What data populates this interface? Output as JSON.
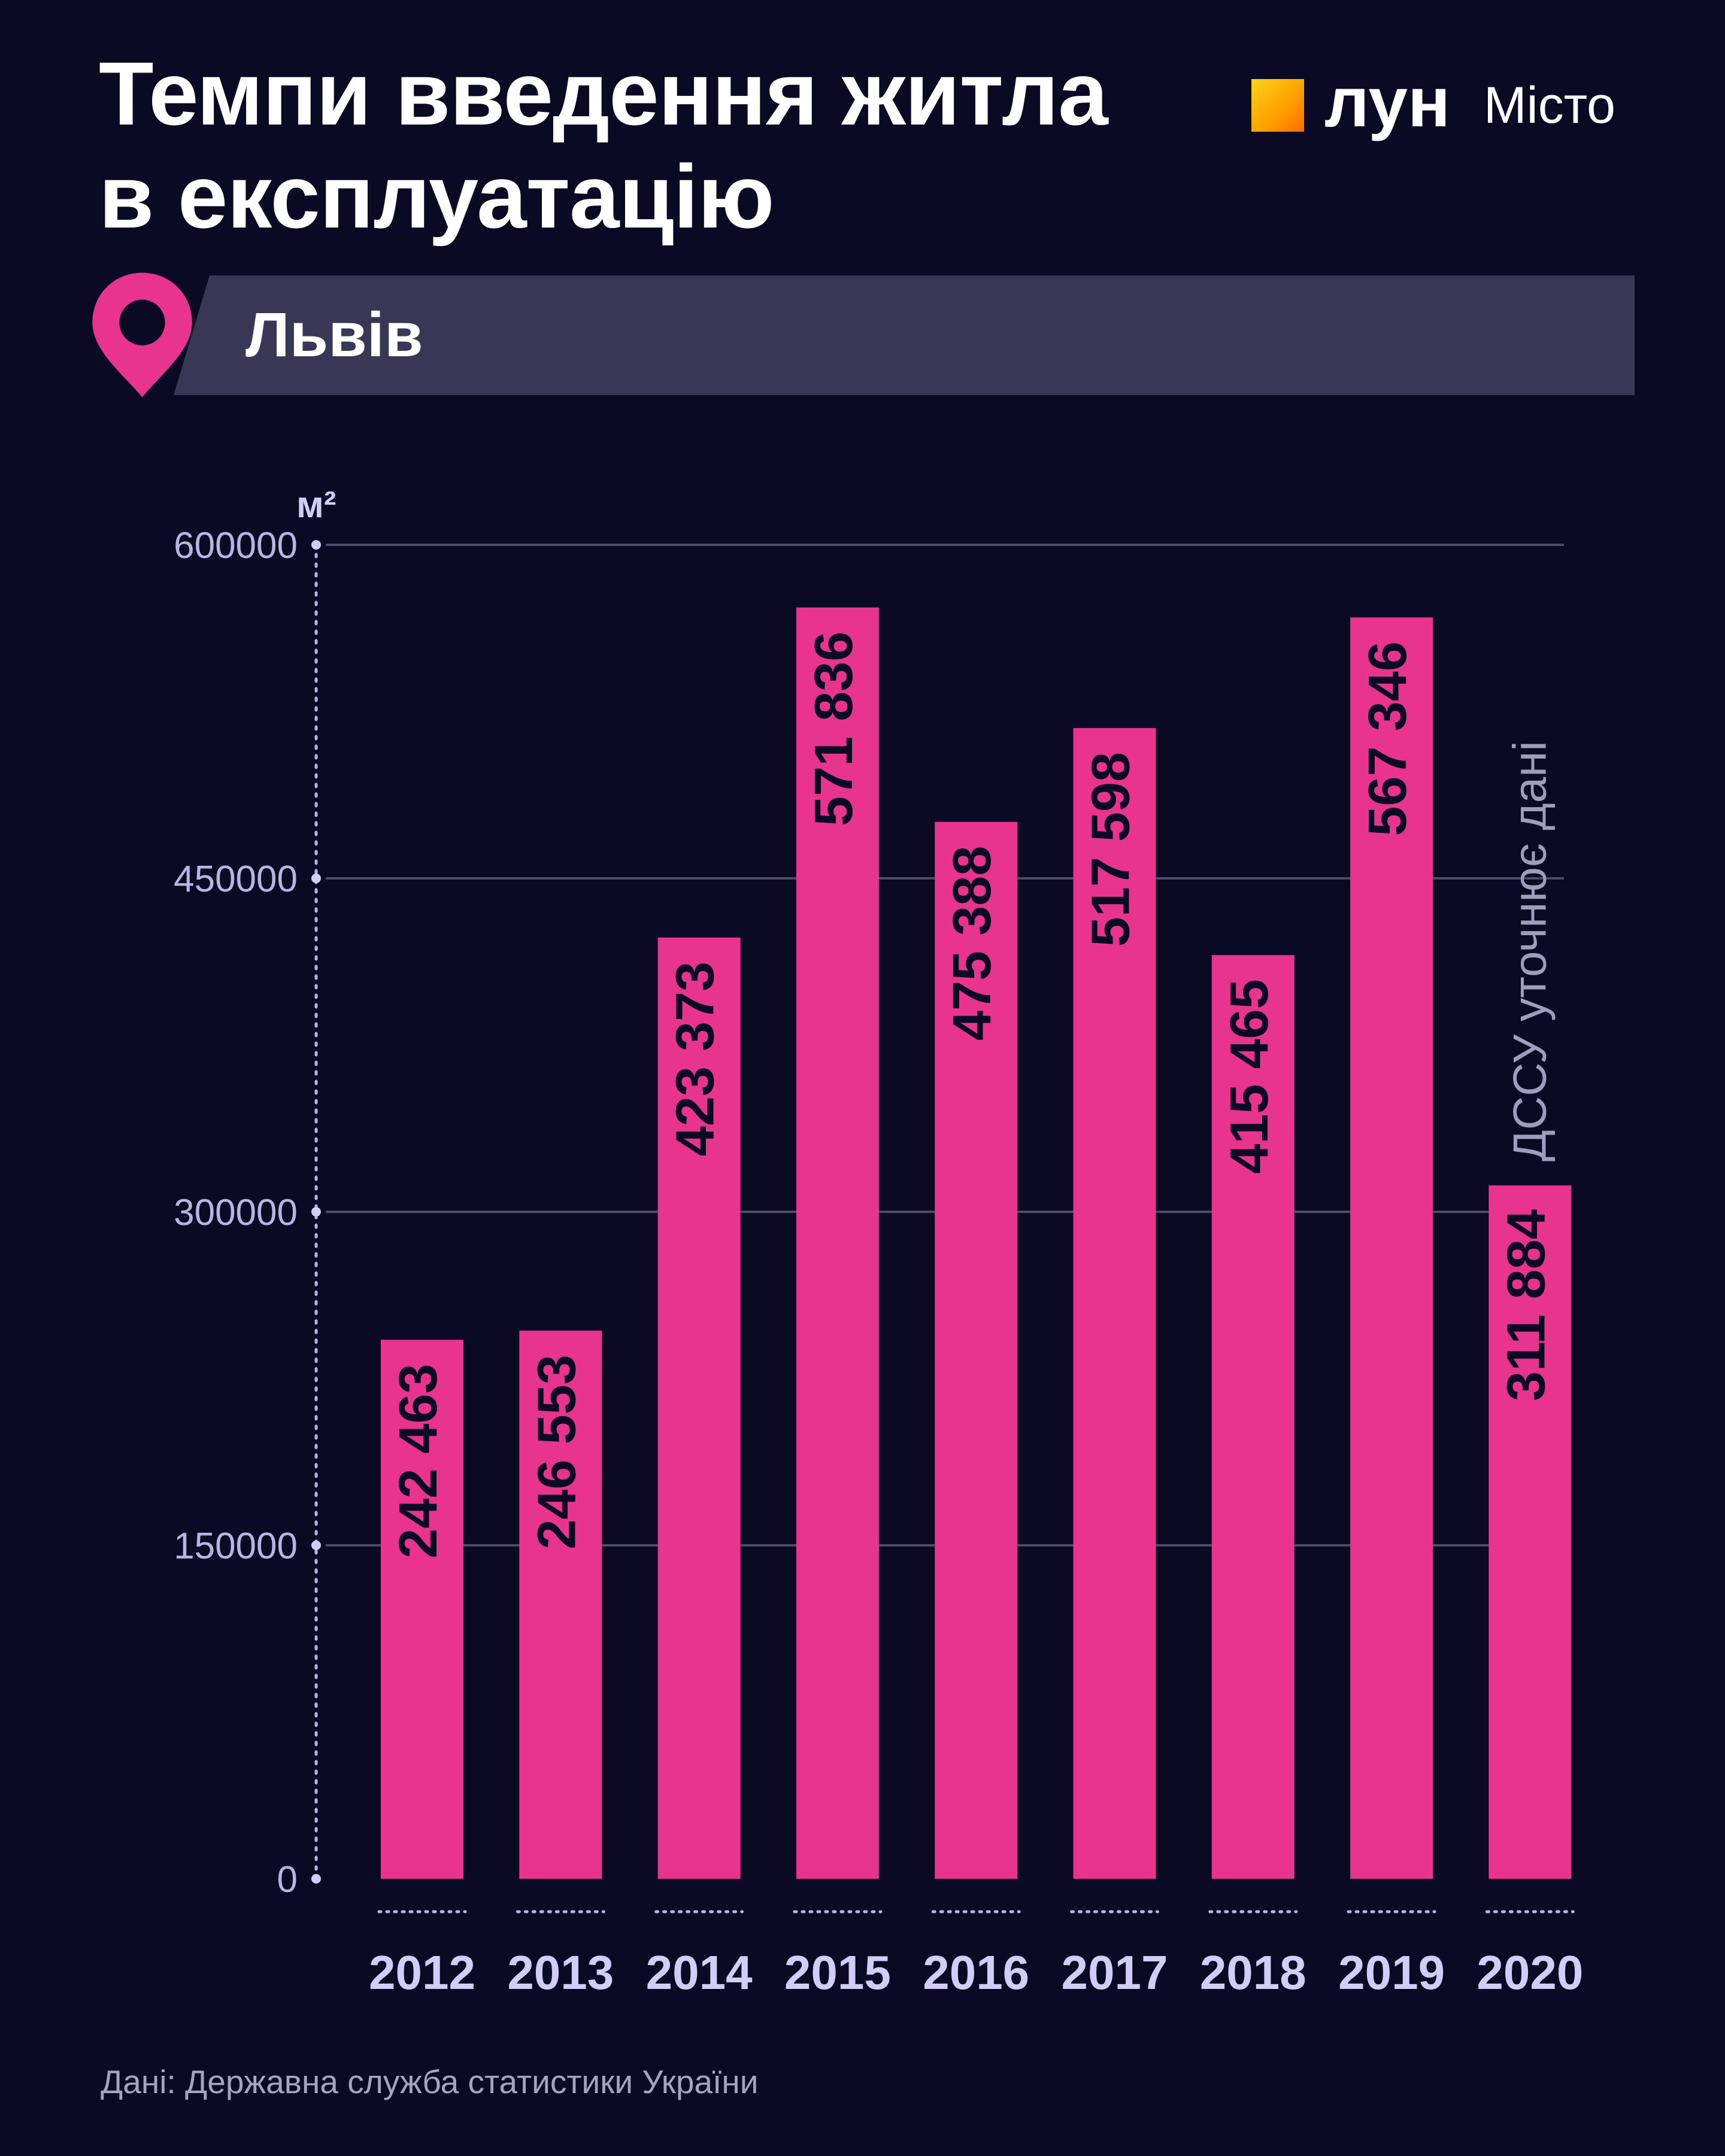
{
  "title_lines": [
    "Темпи введення житла",
    "в експлуатацію"
  ],
  "logo": {
    "brand": "лун",
    "sub": "Місто",
    "accent_color": "#ff9e00",
    "icon": "orange-square-logo"
  },
  "location": {
    "icon": "map-pin-icon",
    "name": "Львів",
    "pin_color": "#e8348e"
  },
  "source_note": "Дані: Державна служба статистики України",
  "chart_data": {
    "type": "bar",
    "title": "Темпи введення житла в експлуатацію",
    "ylabel": "м²",
    "xlabel": "",
    "ylim": [
      0,
      600000
    ],
    "yticks": [
      0,
      150000,
      300000,
      450000,
      600000
    ],
    "grid": true,
    "bar_color": "#e8348e",
    "categories": [
      "2012",
      "2013",
      "2014",
      "2015",
      "2016",
      "2017",
      "2018",
      "2019",
      "2020"
    ],
    "values": [
      242463,
      246553,
      423373,
      571836,
      475388,
      517598,
      415465,
      567346,
      311884
    ],
    "data_labels": [
      "242 463",
      "246 553",
      "423 373",
      "571 836",
      "475 388",
      "517 598",
      "415 465",
      "567 346",
      "311 884"
    ],
    "annotations": [
      {
        "category": "2020",
        "text": "ДССУ уточнює дані"
      }
    ]
  }
}
